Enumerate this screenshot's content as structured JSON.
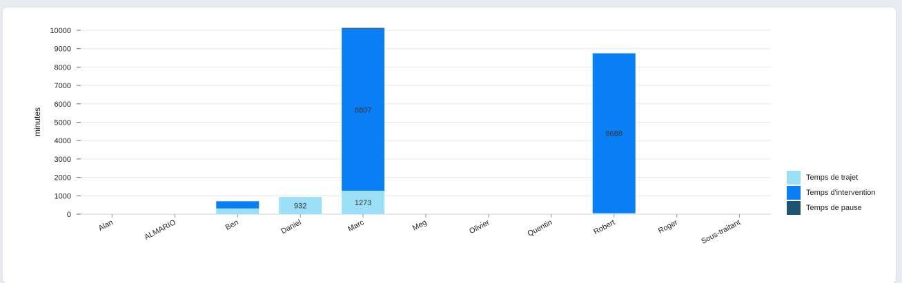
{
  "chart_data": {
    "type": "bar",
    "stacked": true,
    "ylabel": "minutes",
    "xlabel": "",
    "ylim": [
      0,
      10000
    ],
    "yticks": [
      0,
      1000,
      2000,
      3000,
      4000,
      5000,
      6000,
      7000,
      8000,
      9000,
      10000
    ],
    "grid": true,
    "legend_position": "right-bottom",
    "categories": [
      "Alan",
      "ALMARIO",
      "Ben",
      "Daniel",
      "Marc",
      "Meg",
      "Olivier",
      "Quentin",
      "Robert",
      "Roger",
      "Sous-traitant"
    ],
    "series": [
      {
        "name": "Temps de trajet",
        "color": "#9be0f7",
        "values": [
          0,
          0,
          310,
          932,
          1273,
          0,
          0,
          0,
          60,
          0,
          0
        ],
        "labels": [
          null,
          null,
          null,
          "932",
          "1273",
          null,
          null,
          null,
          null,
          null,
          null
        ]
      },
      {
        "name": "Temps d'intervention",
        "color": "#0a7ff5",
        "values": [
          0,
          0,
          390,
          0,
          8807,
          0,
          0,
          0,
          8688,
          0,
          0
        ],
        "labels": [
          null,
          null,
          null,
          null,
          "8807",
          null,
          null,
          null,
          "8688",
          null,
          null
        ]
      },
      {
        "name": "Temps de pause",
        "color": "#1e5470",
        "values": [
          0,
          0,
          0,
          0,
          50,
          0,
          0,
          0,
          0,
          0,
          0
        ],
        "labels": [
          null,
          null,
          null,
          null,
          null,
          null,
          null,
          null,
          null,
          null,
          null
        ]
      }
    ]
  }
}
